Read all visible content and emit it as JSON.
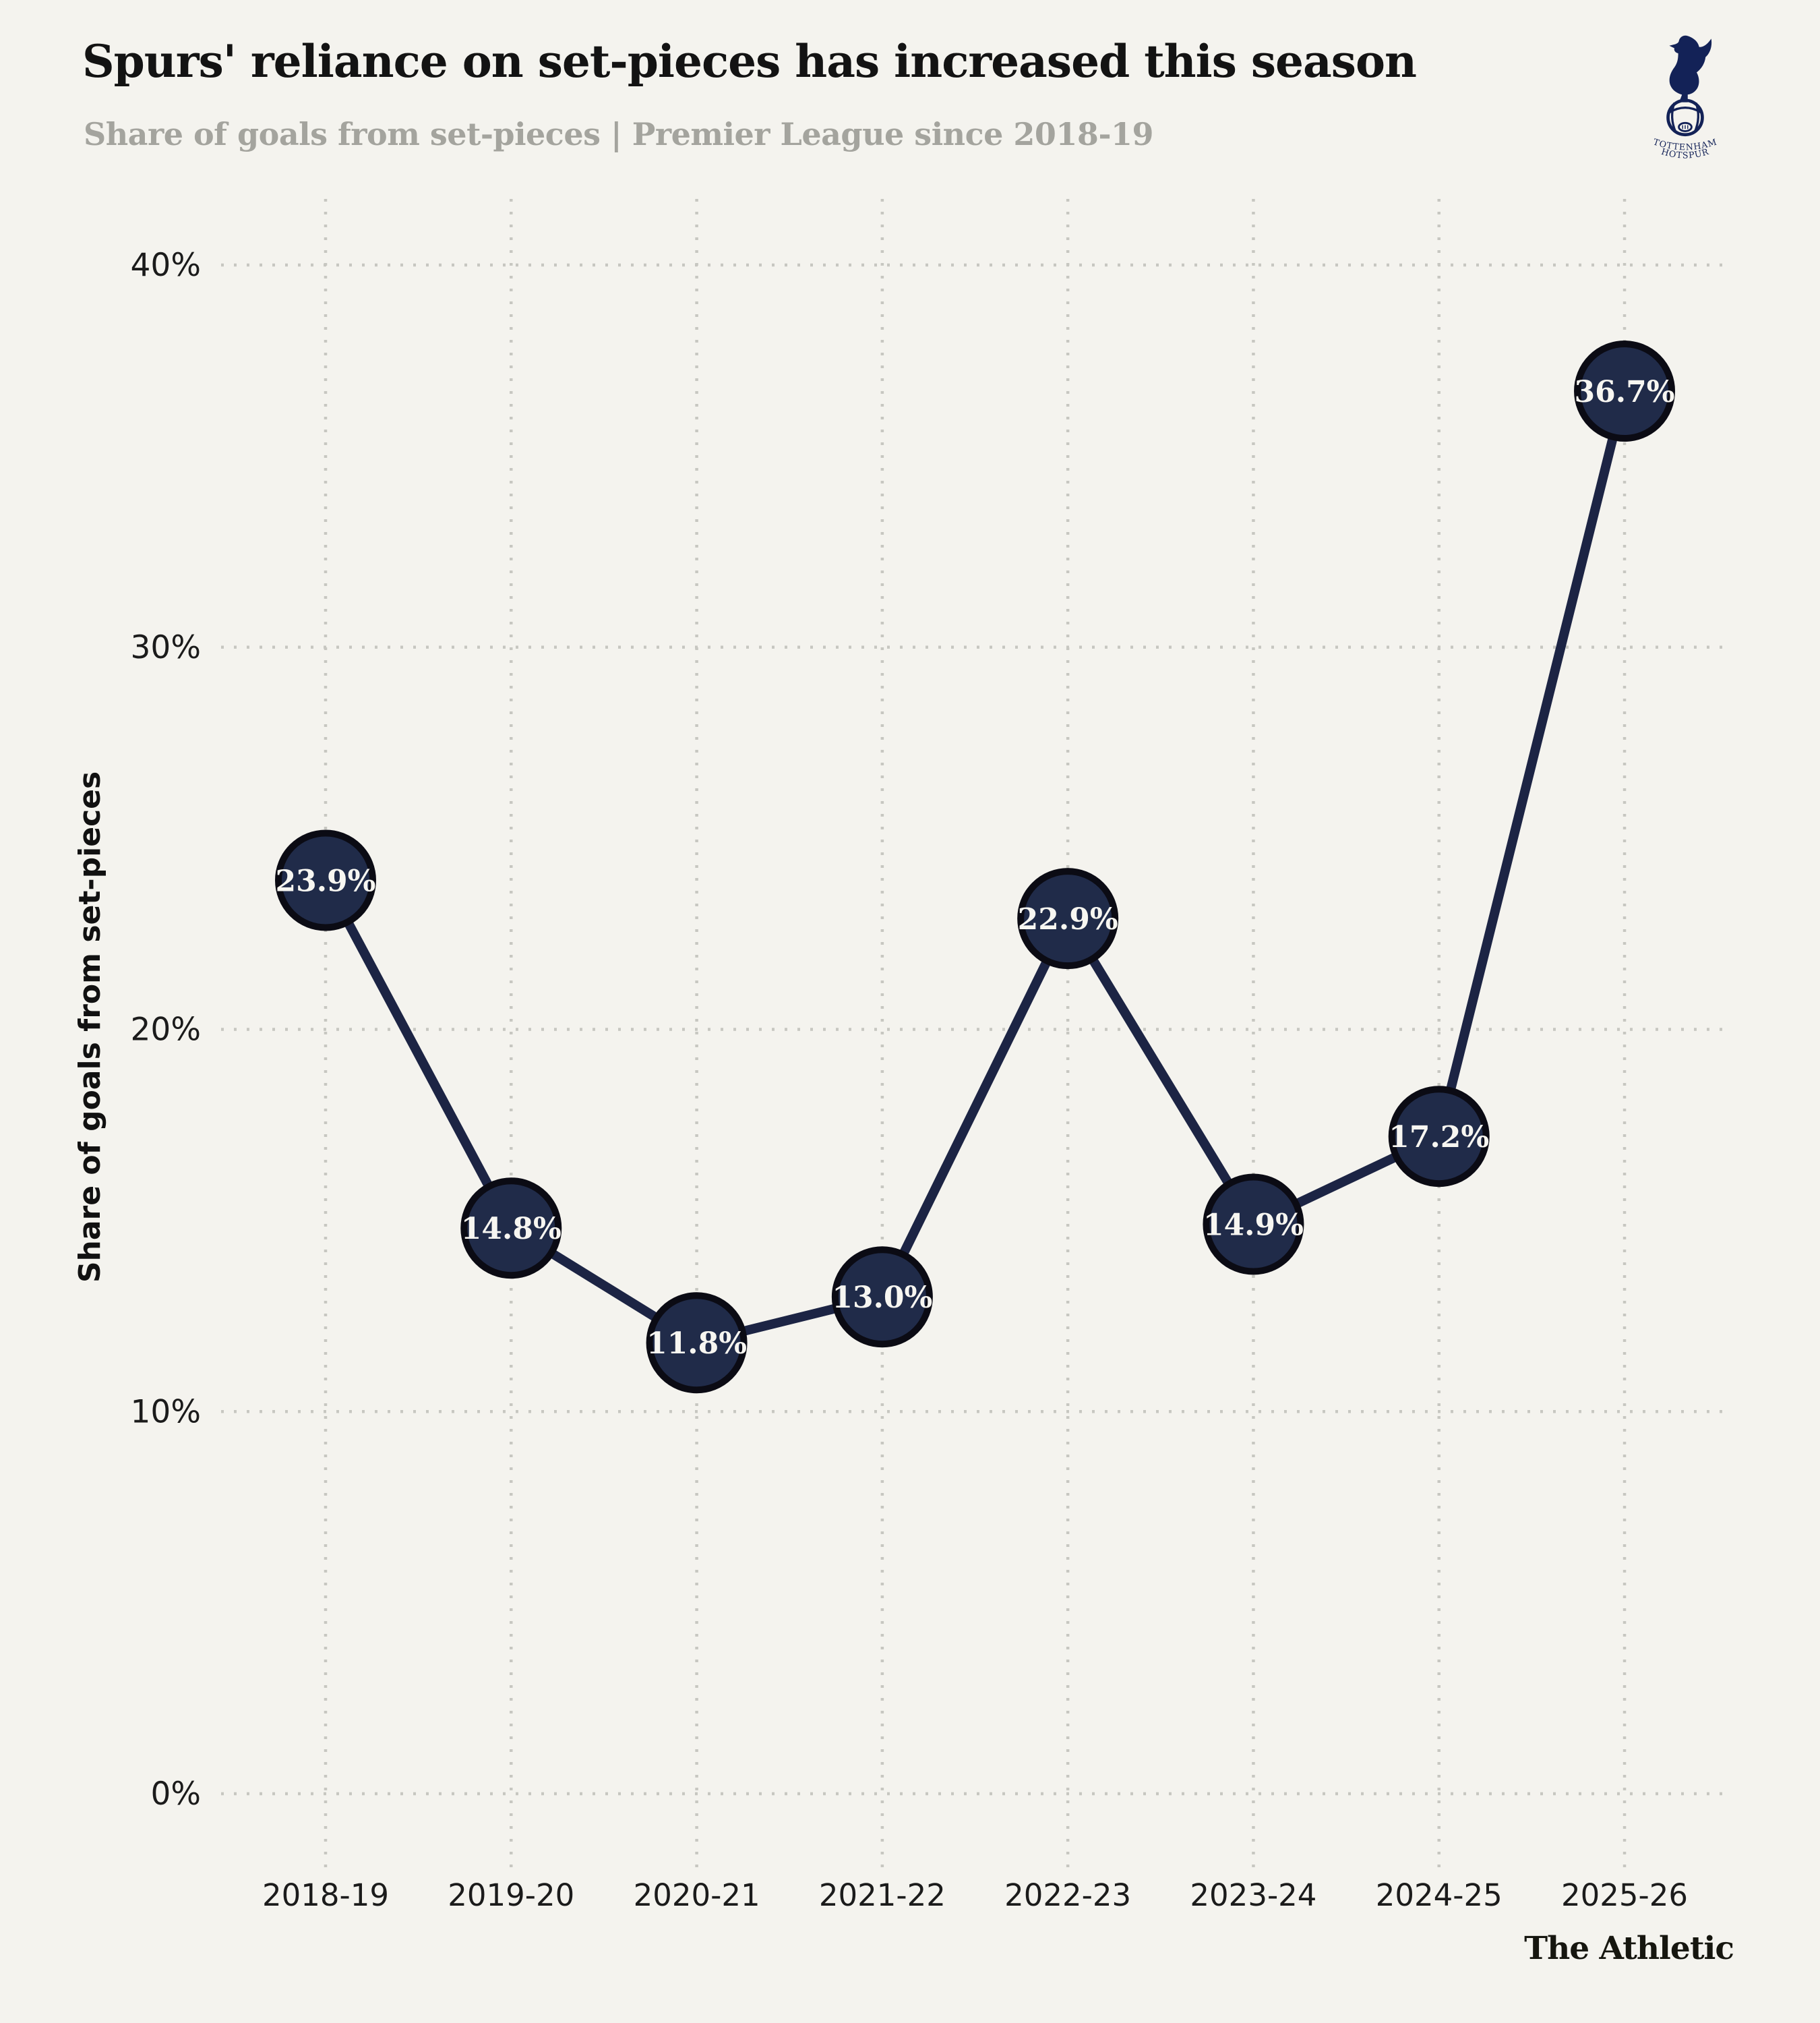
{
  "header": {
    "title": "Spurs' reliance on set-pieces has increased this season",
    "subtitle": "Share of goals from set-pieces | Premier League since 2018-19"
  },
  "logo": {
    "club": "Tottenham Hotspur",
    "line1": "TOTTENHAM",
    "line2": "HOTSPUR"
  },
  "footer": {
    "brand": "The Athletic"
  },
  "chart_data": {
    "type": "line",
    "title": "Spurs' reliance on set-pieces has increased this season",
    "subtitle": "Share of goals from set-pieces | Premier League since 2018-19",
    "categories": [
      "2018-19",
      "2019-20",
      "2020-21",
      "2021-22",
      "2022-23",
      "2023-24",
      "2024-25",
      "2025-26"
    ],
    "values": [
      23.9,
      14.8,
      11.8,
      13.0,
      22.9,
      14.9,
      17.2,
      36.7
    ],
    "point_labels": [
      "23.9%",
      "14.8%",
      "11.8%",
      "13.0%",
      "22.9%",
      "14.9%",
      "17.2%",
      "36.7%"
    ],
    "xlabel": "",
    "ylabel": "Share of goals from set-pieces",
    "ylim": [
      0,
      40
    ],
    "yticks": [
      0,
      10,
      20,
      30,
      40
    ],
    "ytick_labels": [
      "0%",
      "10%",
      "20%",
      "30%",
      "40%"
    ],
    "grid": "dotted, horizontal at each ytick and vertical at each category",
    "legend": "none",
    "colors": {
      "background": "#f4f3ee",
      "line": "#1c2444",
      "marker_fill": "#202b49",
      "marker_stroke": "#0b0b14",
      "marker_text": "#f7f6f1",
      "grid": "#c7c7c1",
      "title": "#131313",
      "subtitle": "#a4a49e",
      "tick": "#1b1b1b",
      "spurs_navy": "#132257"
    }
  }
}
